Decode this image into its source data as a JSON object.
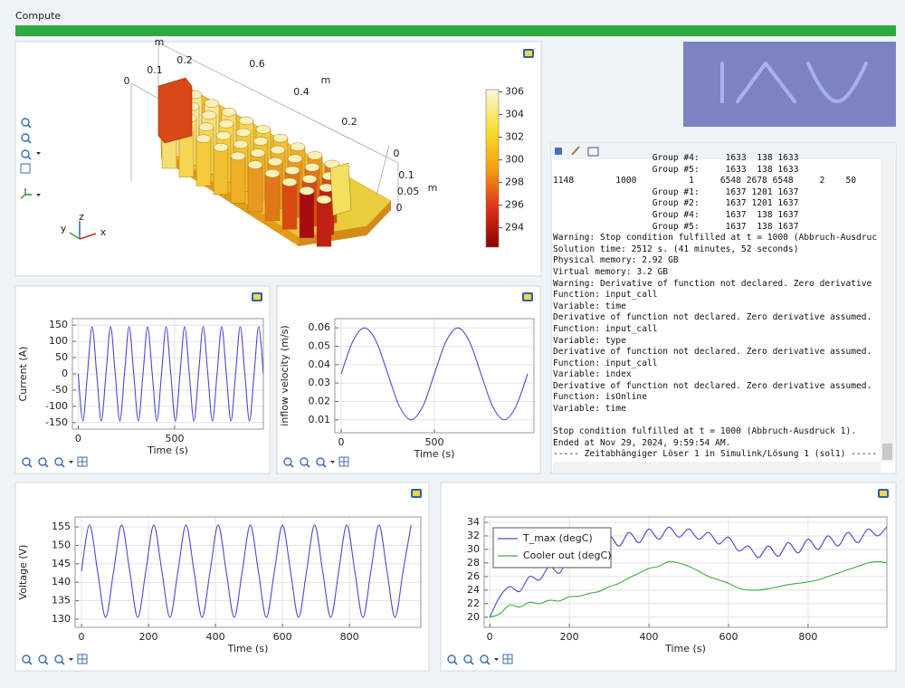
{
  "toolbar": {
    "title": "Compute"
  },
  "view3d": {
    "axis_labels": [
      "m",
      "0",
      "0.1",
      "0.2",
      "0.6",
      "0.4",
      "m",
      "0.2",
      "0",
      "0.1",
      "0.05",
      "m",
      "0"
    ],
    "triad": [
      "y",
      "z",
      "x"
    ],
    "colorbar": {
      "lim": [
        292.3,
        306.2
      ],
      "ticks": [
        294,
        296,
        298,
        300,
        302,
        304,
        306
      ]
    }
  },
  "log": {
    "blocks": [
      [
        "                   Group #4:     1633  138 1633",
        "                   Group #5:     1633  138 1633",
        "1148        1000          1     6548 2678 6548     2    50",
        "                   Group #1:     1637 1201 1637",
        "                   Group #2:     1637 1201 1637",
        "                   Group #4:     1637  138 1637",
        "                   Group #5:     1637  138 1637",
        "Warning: Stop condition fulfilled at t = 1000 (Abbruch-Ausdruc",
        "Solution time: 2512 s. (41 minutes, 52 seconds)",
        "Physical memory: 2.92 GB",
        "Virtual memory: 3.2 GB",
        "Warning: Derivative of function not declared. Zero derivative",
        "Function: input_call",
        "Variable: time",
        "Derivative of function not declared. Zero derivative assumed.",
        "Function: input_call",
        "Variable: type",
        "Derivative of function not declared. Zero derivative assumed.",
        "Function: input_call",
        "Variable: index",
        "Derivative of function not declared. Zero derivative assumed.",
        "Function: isOnline",
        "Variable: time"
      ],
      [
        "Stop condition fulfilled at t = 1000 (Abbruch-Ausdruck 1).",
        "Ended at Nov 29, 2024, 9:59:54 AM.",
        "----- Zeitabhängiger Löser 1 in Simulink/Lösung 1 (sol1) -----"
      ]
    ]
  },
  "chart_data": [
    {
      "type": "line",
      "ylabel": "Current (A)",
      "xlabel": "Time (s)",
      "x": [
        0,
        24,
        48,
        72,
        96,
        120,
        144,
        168,
        192,
        216,
        240,
        264,
        288,
        312,
        336,
        360,
        384,
        408,
        432,
        456,
        480,
        504,
        528,
        552,
        576,
        600,
        624,
        648,
        672,
        696,
        720,
        744,
        768,
        792,
        816,
        840,
        864,
        888,
        912,
        936,
        960
      ],
      "series": [
        {
          "color": "#4a4ad4",
          "values": [
            0,
            -145,
            0,
            145,
            0,
            -145,
            0,
            145,
            0,
            -145,
            0,
            145,
            0,
            -145,
            0,
            145,
            0,
            -145,
            0,
            145,
            0,
            -145,
            0,
            145,
            0,
            -145,
            0,
            145,
            0,
            -145,
            0,
            145,
            0,
            -145,
            0,
            145,
            0,
            -145,
            0,
            145,
            0
          ]
        }
      ],
      "xlim": [
        -30,
        960
      ],
      "xticks": [
        0,
        500
      ],
      "ylim": [
        -170,
        170
      ],
      "yticks": [
        -150,
        -100,
        -50,
        0,
        50,
        100,
        150
      ],
      "grid": true
    },
    {
      "type": "line",
      "ylabel": "inflow velocity (m/s)",
      "xlabel": "Time (s)",
      "x": [
        0,
        62.5,
        125,
        187.5,
        250,
        312.5,
        375,
        437.5,
        500,
        562.5,
        625,
        687.5,
        750,
        812.5,
        875,
        937.5,
        1000
      ],
      "series": [
        {
          "color": "#4a4ad4",
          "values": [
            0.035,
            0.0527,
            0.06,
            0.0527,
            0.035,
            0.0173,
            0.01,
            0.0173,
            0.035,
            0.0527,
            0.06,
            0.0527,
            0.035,
            0.0173,
            0.01,
            0.0173,
            0.035
          ]
        }
      ],
      "xlim": [
        -34,
        1034
      ],
      "xticks": [
        0,
        500
      ],
      "ylim": [
        0.003,
        0.065
      ],
      "yticks": [
        0.01,
        0.02,
        0.03,
        0.04,
        0.05,
        0.06
      ],
      "grid": true
    },
    {
      "type": "line",
      "ylabel": "Voltage (V)",
      "xlabel": "Time (s)",
      "x": [
        0,
        24,
        48,
        72,
        96,
        120,
        144,
        168,
        192,
        216,
        240,
        264,
        288,
        312,
        336,
        360,
        384,
        408,
        432,
        456,
        480,
        504,
        528,
        552,
        576,
        600,
        624,
        648,
        672,
        696,
        720,
        744,
        768,
        792,
        816,
        840,
        864,
        888,
        912,
        936,
        960,
        984
      ],
      "series": [
        {
          "color": "#4a4ad4",
          "values": [
            143,
            155.5,
            143,
            130.5,
            143,
            155.5,
            143,
            130.5,
            143,
            155.5,
            143,
            130.5,
            143,
            155.5,
            143,
            130.5,
            143,
            155.5,
            143,
            130.5,
            143,
            155.5,
            143,
            130.5,
            143,
            155.5,
            143,
            130.5,
            143,
            155.5,
            143,
            130.5,
            143,
            155.5,
            143,
            130.5,
            143,
            155.5,
            143,
            130.5,
            143,
            155.5
          ]
        }
      ],
      "xlim": [
        -19,
        1013
      ],
      "xticks": [
        0,
        200,
        400,
        600,
        800
      ],
      "ylim": [
        127.8,
        157.7
      ],
      "yticks": [
        130,
        135,
        140,
        145,
        150,
        155
      ],
      "grid": true
    },
    {
      "type": "line",
      "legend": "upper left",
      "x": [
        0,
        25,
        50,
        75,
        100,
        125,
        150,
        175,
        200,
        225,
        250,
        275,
        300,
        325,
        350,
        375,
        400,
        425,
        450,
        475,
        500,
        525,
        550,
        575,
        600,
        625,
        650,
        675,
        700,
        725,
        750,
        775,
        800,
        825,
        850,
        875,
        900,
        925,
        950,
        975,
        1000
      ],
      "series": [
        {
          "name": "T_max (degC)",
          "color": "#4a4ad4",
          "values": [
            20,
            23,
            24.5,
            23.8,
            26,
            25.5,
            27.5,
            26.5,
            29,
            28,
            30.5,
            29.5,
            32,
            30.5,
            32.5,
            31,
            33,
            31.5,
            33.3,
            31.8,
            33,
            31.5,
            32.5,
            30.8,
            31.8,
            29.8,
            30.5,
            28.8,
            30.5,
            29,
            31,
            29.5,
            31.5,
            30,
            32,
            30.5,
            32.5,
            31,
            33,
            32,
            33.5
          ]
        },
        {
          "name": "Cooler out (degC)",
          "color": "#3cae3c",
          "values": [
            20,
            20.5,
            21.8,
            21.5,
            22.2,
            22,
            22.5,
            22.4,
            23,
            23.1,
            23.5,
            23.8,
            24.5,
            25,
            25.8,
            26.5,
            27.2,
            27.5,
            28.2,
            28,
            27.5,
            26.8,
            26,
            25.5,
            25,
            24.3,
            24,
            24,
            24.2,
            24.5,
            24.8,
            25,
            25.2,
            25.5,
            26,
            26.5,
            27,
            27.5,
            28,
            28.2,
            28
          ]
        }
      ],
      "xlabel": "Time (s)",
      "xlim": [
        -14,
        998
      ],
      "xticks": [
        0,
        200,
        400,
        600,
        800
      ],
      "ylim": [
        18.5,
        34.8
      ],
      "yticks": [
        20,
        22,
        24,
        26,
        28,
        30,
        32,
        34
      ],
      "grid": true
    }
  ]
}
